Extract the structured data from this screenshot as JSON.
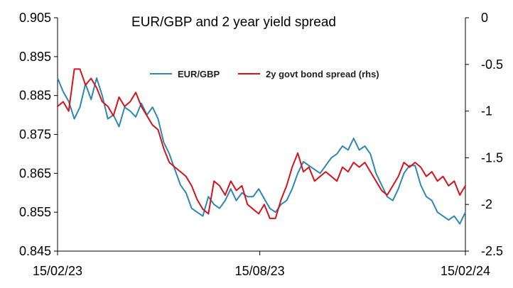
{
  "chart_data": {
    "type": "line",
    "title": "EUR/GBP and 2 year yield spread",
    "xlabel": "",
    "ylabel": "",
    "x_start": "15/02/23",
    "x_end": "15/02/24",
    "x_ticks": [
      "15/02/23",
      "15/08/23",
      "15/02/24"
    ],
    "ylim": [
      0.845,
      0.905
    ],
    "y_ticks": [
      "0.905",
      "0.895",
      "0.885",
      "0.875",
      "0.865",
      "0.855",
      "0.845"
    ],
    "y2lim": [
      -2.5,
      0
    ],
    "y2_ticks": [
      "0",
      "-0.5",
      "-1",
      "-1.5",
      "-2",
      "-2.5"
    ],
    "legend_position": "top-center",
    "grid": false,
    "series": [
      {
        "name": "EUR/GBP",
        "axis": "left",
        "color": "#2e86b5",
        "points": [
          [
            "15/02/23",
            0.8895
          ],
          [
            "20/02/23",
            0.886
          ],
          [
            "25/02/23",
            0.8835
          ],
          [
            "02/03/23",
            0.879
          ],
          [
            "07/03/23",
            0.882
          ],
          [
            "12/03/23",
            0.888
          ],
          [
            "17/03/23",
            0.884
          ],
          [
            "22/03/23",
            0.8895
          ],
          [
            "27/03/23",
            0.885
          ],
          [
            "01/04/23",
            0.879
          ],
          [
            "06/04/23",
            0.88
          ],
          [
            "11/04/23",
            0.877
          ],
          [
            "16/04/23",
            0.882
          ],
          [
            "21/04/23",
            0.881
          ],
          [
            "26/04/23",
            0.8795
          ],
          [
            "01/05/23",
            0.883
          ],
          [
            "06/05/23",
            0.88
          ],
          [
            "11/05/23",
            0.882
          ],
          [
            "16/05/23",
            0.879
          ],
          [
            "21/05/23",
            0.873
          ],
          [
            "26/05/23",
            0.87
          ],
          [
            "31/05/23",
            0.866
          ],
          [
            "05/06/23",
            0.862
          ],
          [
            "10/06/23",
            0.86
          ],
          [
            "15/06/23",
            0.856
          ],
          [
            "20/06/23",
            0.855
          ],
          [
            "25/06/23",
            0.854
          ],
          [
            "30/06/23",
            0.859
          ],
          [
            "05/07/23",
            0.857
          ],
          [
            "10/07/23",
            0.856
          ],
          [
            "15/07/23",
            0.858
          ],
          [
            "20/07/23",
            0.861
          ],
          [
            "25/07/23",
            0.858
          ],
          [
            "30/07/23",
            0.86
          ],
          [
            "04/08/23",
            0.859
          ],
          [
            "09/08/23",
            0.859
          ],
          [
            "14/08/23",
            0.861
          ],
          [
            "19/08/23",
            0.8585
          ],
          [
            "24/08/23",
            0.856
          ],
          [
            "29/08/23",
            0.855
          ],
          [
            "03/09/23",
            0.857
          ],
          [
            "08/09/23",
            0.858
          ],
          [
            "13/09/23",
            0.861
          ],
          [
            "18/09/23",
            0.865
          ],
          [
            "23/09/23",
            0.868
          ],
          [
            "28/09/23",
            0.867
          ],
          [
            "03/10/23",
            0.866
          ],
          [
            "08/10/23",
            0.865
          ],
          [
            "13/10/23",
            0.867
          ],
          [
            "18/10/23",
            0.869
          ],
          [
            "23/10/23",
            0.87
          ],
          [
            "28/10/23",
            0.872
          ],
          [
            "02/11/23",
            0.871
          ],
          [
            "07/11/23",
            0.874
          ],
          [
            "12/11/23",
            0.871
          ],
          [
            "17/11/23",
            0.872
          ],
          [
            "22/11/23",
            0.87
          ],
          [
            "27/11/23",
            0.865
          ],
          [
            "02/12/23",
            0.862
          ],
          [
            "07/12/23",
            0.859
          ],
          [
            "12/12/23",
            0.858
          ],
          [
            "17/12/23",
            0.861
          ],
          [
            "22/12/23",
            0.865
          ],
          [
            "27/12/23",
            0.867
          ],
          [
            "01/01/24",
            0.867
          ],
          [
            "06/01/24",
            0.862
          ],
          [
            "11/01/24",
            0.859
          ],
          [
            "16/01/24",
            0.858
          ],
          [
            "21/01/24",
            0.855
          ],
          [
            "26/01/24",
            0.854
          ],
          [
            "31/01/24",
            0.853
          ],
          [
            "05/02/24",
            0.854
          ],
          [
            "10/02/24",
            0.852
          ],
          [
            "15/02/24",
            0.855
          ]
        ]
      },
      {
        "name": "2y govt bond spread (rhs)",
        "axis": "right",
        "color": "#d4141c",
        "points": [
          [
            "15/02/23",
            -0.95
          ],
          [
            "20/02/23",
            -0.9
          ],
          [
            "25/02/23",
            -1.0
          ],
          [
            "02/03/23",
            -0.55
          ],
          [
            "07/03/23",
            -0.55
          ],
          [
            "12/03/23",
            -0.72
          ],
          [
            "17/03/23",
            -0.65
          ],
          [
            "22/03/23",
            -0.75
          ],
          [
            "27/03/23",
            -0.9
          ],
          [
            "01/04/23",
            -0.95
          ],
          [
            "06/04/23",
            -1.05
          ],
          [
            "11/04/23",
            -0.85
          ],
          [
            "16/04/23",
            -0.95
          ],
          [
            "21/04/23",
            -0.9
          ],
          [
            "26/04/23",
            -0.8
          ],
          [
            "01/05/23",
            -0.95
          ],
          [
            "06/05/23",
            -1.05
          ],
          [
            "11/05/23",
            -1.15
          ],
          [
            "16/05/23",
            -1.2
          ],
          [
            "21/05/23",
            -1.4
          ],
          [
            "26/05/23",
            -1.55
          ],
          [
            "31/05/23",
            -1.6
          ],
          [
            "05/06/23",
            -1.65
          ],
          [
            "10/06/23",
            -1.7
          ],
          [
            "15/06/23",
            -1.8
          ],
          [
            "20/06/23",
            -1.95
          ],
          [
            "25/06/23",
            -2.05
          ],
          [
            "30/06/23",
            -2.1
          ],
          [
            "05/07/23",
            -1.75
          ],
          [
            "10/07/23",
            -1.8
          ],
          [
            "15/07/23",
            -1.9
          ],
          [
            "20/07/23",
            -1.75
          ],
          [
            "25/07/23",
            -1.85
          ],
          [
            "30/07/23",
            -1.8
          ],
          [
            "04/08/23",
            -2.0
          ],
          [
            "09/08/23",
            -2.05
          ],
          [
            "14/08/23",
            -2.1
          ],
          [
            "19/08/23",
            -2.0
          ],
          [
            "24/08/23",
            -2.15
          ],
          [
            "29/08/23",
            -2.15
          ],
          [
            "03/09/23",
            -1.95
          ],
          [
            "08/09/23",
            -1.8
          ],
          [
            "13/09/23",
            -1.6
          ],
          [
            "18/09/23",
            -1.45
          ],
          [
            "23/09/23",
            -1.65
          ],
          [
            "28/09/23",
            -1.6
          ],
          [
            "03/10/23",
            -1.75
          ],
          [
            "08/10/23",
            -1.7
          ],
          [
            "13/10/23",
            -1.65
          ],
          [
            "18/10/23",
            -1.7
          ],
          [
            "23/10/23",
            -1.75
          ],
          [
            "28/10/23",
            -1.6
          ],
          [
            "02/11/23",
            -1.65
          ],
          [
            "07/11/23",
            -1.55
          ],
          [
            "12/11/23",
            -1.6
          ],
          [
            "17/11/23",
            -1.55
          ],
          [
            "22/11/23",
            -1.65
          ],
          [
            "27/11/23",
            -1.75
          ],
          [
            "02/12/23",
            -1.85
          ],
          [
            "07/12/23",
            -1.9
          ],
          [
            "12/12/23",
            -1.8
          ],
          [
            "17/12/23",
            -1.7
          ],
          [
            "22/12/23",
            -1.55
          ],
          [
            "27/12/23",
            -1.6
          ],
          [
            "01/01/24",
            -1.55
          ],
          [
            "06/01/24",
            -1.6
          ],
          [
            "11/01/24",
            -1.7
          ],
          [
            "16/01/24",
            -1.65
          ],
          [
            "21/01/24",
            -1.75
          ],
          [
            "26/01/24",
            -1.7
          ],
          [
            "31/01/24",
            -1.8
          ],
          [
            "05/02/24",
            -1.75
          ],
          [
            "10/02/24",
            -1.9
          ],
          [
            "15/02/24",
            -1.8
          ]
        ]
      }
    ]
  }
}
